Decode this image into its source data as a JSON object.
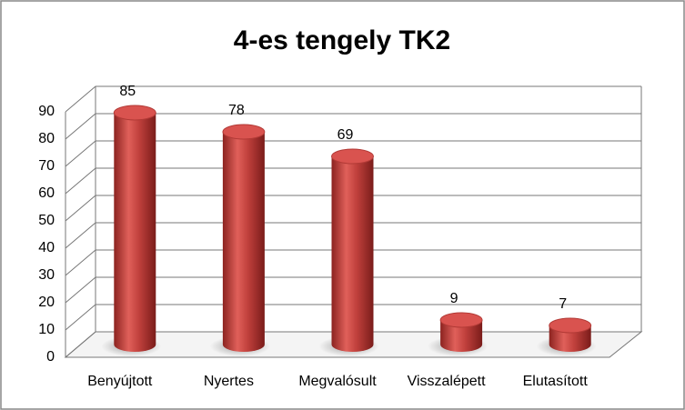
{
  "chart_data": {
    "type": "bar",
    "title": "4-es tengely TK2",
    "categories": [
      "Benyújtott",
      "Nyertes",
      "Megvalósult",
      "Visszalépett",
      "Elutasított"
    ],
    "values": [
      85,
      78,
      69,
      9,
      7
    ],
    "color": "#c0504d",
    "ylim": [
      0,
      90
    ],
    "yticks": [
      0,
      10,
      20,
      30,
      40,
      50,
      60,
      70,
      80,
      90
    ],
    "grid": true
  }
}
